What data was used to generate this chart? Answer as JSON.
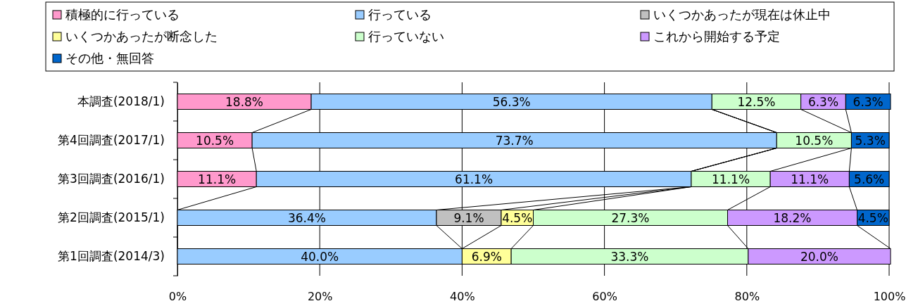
{
  "chart_data": {
    "type": "bar",
    "orientation": "horizontal",
    "stacked": true,
    "categories": [
      "本調査(2018/1)",
      "第4回調査(2017/1)",
      "第3回調査(2016/1)",
      "第2回調査(2015/1)",
      "第1回調査(2014/3)"
    ],
    "series": [
      {
        "name": "積極的に行っている",
        "color": "#ff99cc",
        "values": [
          18.8,
          10.5,
          11.1,
          0,
          0
        ],
        "value_labels": [
          "18.8%",
          "10.5%",
          "11.1%",
          null,
          null
        ]
      },
      {
        "name": "行っている",
        "color": "#99ccff",
        "values": [
          56.3,
          73.7,
          61.1,
          36.4,
          40.0
        ],
        "value_labels": [
          "56.3%",
          "73.7%",
          "61.1%",
          "36.4%",
          "40.0%"
        ]
      },
      {
        "name": "いくつかあったが現在は休止中",
        "color": "#c0c0c0",
        "values": [
          null,
          null,
          null,
          9.1,
          null
        ],
        "value_labels": [
          null,
          null,
          null,
          "9.1%",
          null
        ]
      },
      {
        "name": "いくつかあったが断念した",
        "color": "#ffff99",
        "values": [
          null,
          null,
          null,
          4.5,
          6.9
        ],
        "value_labels": [
          null,
          null,
          null,
          "4.5%",
          "6.9%"
        ]
      },
      {
        "name": "行っていない",
        "color": "#ccffcc",
        "values": [
          12.5,
          10.5,
          11.1,
          27.3,
          33.3
        ],
        "value_labels": [
          "12.5%",
          "10.5%",
          "11.1%",
          "27.3%",
          "33.3%"
        ]
      },
      {
        "name": "これから開始する予定",
        "color": "#cc99ff",
        "values": [
          6.3,
          null,
          11.1,
          18.2,
          20.0
        ],
        "value_labels": [
          "6.3%",
          null,
          "11.1%",
          "18.2%",
          "20.0%"
        ]
      },
      {
        "name": "その他・無回答",
        "color": "#0066cc",
        "values": [
          6.3,
          5.3,
          5.6,
          4.5,
          null
        ],
        "value_labels": [
          "6.3%",
          "5.3%",
          "5.6%",
          "4.5%",
          null
        ]
      }
    ],
    "xlim": [
      0,
      100
    ],
    "xticks": [
      {
        "value": 0,
        "label": "0%"
      },
      {
        "value": 20,
        "label": "20%"
      },
      {
        "value": 40,
        "label": "40%"
      },
      {
        "value": 60,
        "label": "60%"
      },
      {
        "value": 80,
        "label": "80%"
      },
      {
        "value": 100,
        "label": "100%"
      }
    ],
    "grid": "x",
    "legend": "top"
  }
}
